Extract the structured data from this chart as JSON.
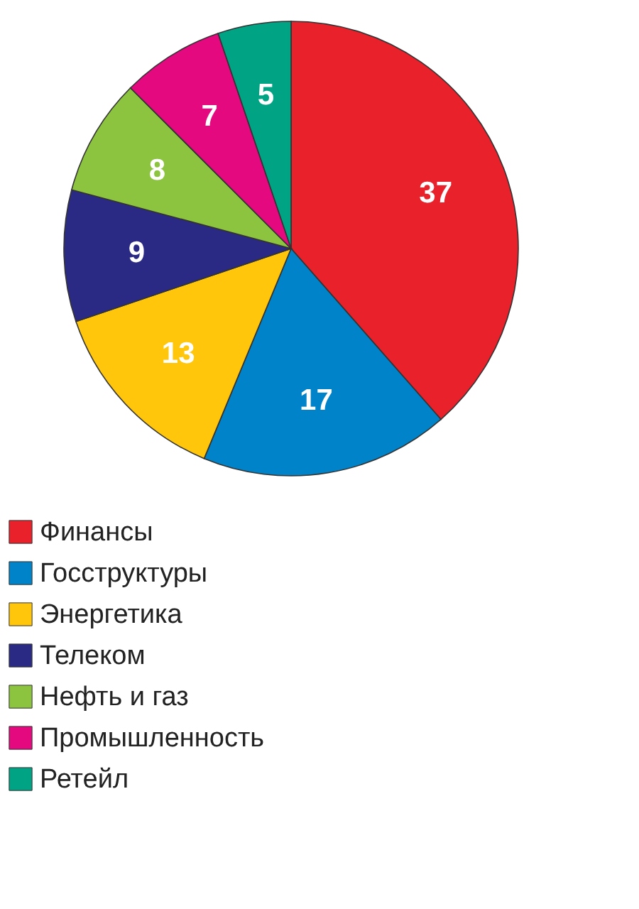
{
  "chart_data": {
    "type": "pie",
    "categories": [
      "Финансы",
      "Госструктуры",
      "Энергетика",
      "Телеком",
      "Нефть и газ",
      "Промышленность",
      "Ретейл"
    ],
    "values": [
      37,
      17,
      13,
      9,
      8,
      7,
      5
    ],
    "colors": [
      "#e8212b",
      "#0083c9",
      "#ffc60b",
      "#2a2a84",
      "#8cc43f",
      "#e5097f",
      "#00a384"
    ],
    "data_labels": true,
    "legend": "bottom"
  }
}
